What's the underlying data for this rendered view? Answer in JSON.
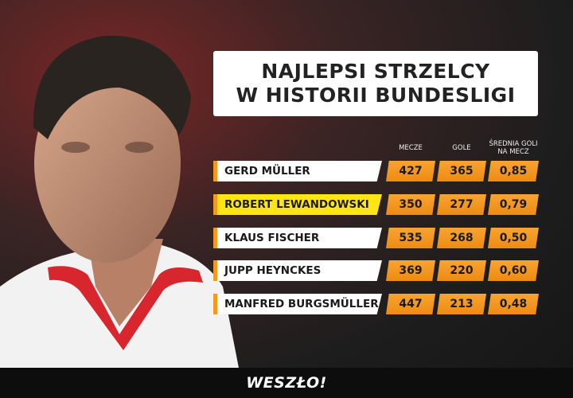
{
  "header": {
    "title_lines": [
      "NAJLEPSI STRZELCY",
      "W HISTORII BUNDESLIGI"
    ]
  },
  "table": {
    "columns": [
      "MECZE",
      "GOLE",
      "ŚREDNIA GOLI NA MECZ"
    ],
    "rows": [
      {
        "player": "GERD MÜLLER",
        "background": "#ffffff",
        "cells": [
          427,
          365,
          "0,85"
        ]
      },
      {
        "player": "ROBERT LEWANDOWSKI",
        "background": "#ffe512",
        "cells": [
          350,
          277,
          "0,79"
        ]
      },
      {
        "player": "KLAUS FISCHER",
        "background": "#ffffff",
        "cells": [
          535,
          268,
          "0,50"
        ]
      },
      {
        "player": "JUPP HEYNCKES",
        "background": "#ffffff",
        "cells": [
          369,
          220,
          "0,60"
        ]
      },
      {
        "player": "MANFRED BURGSMÜLLER",
        "background": "#ffffff",
        "cells": [
          447,
          213,
          "0,48"
        ]
      }
    ]
  },
  "footer": {
    "logo": "WESZŁO!"
  }
}
